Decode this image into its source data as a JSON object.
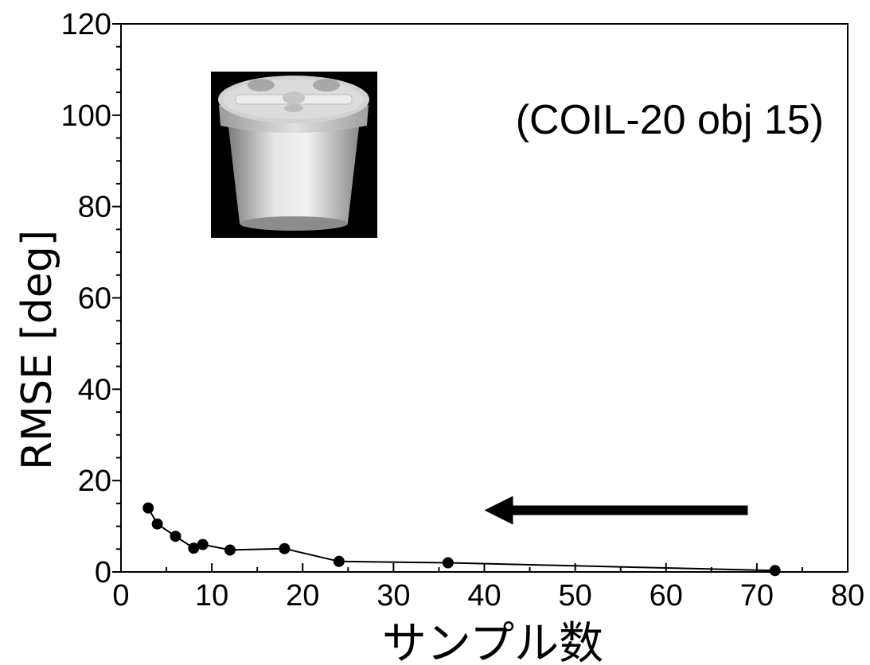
{
  "chart_data": {
    "type": "line",
    "x": [
      3,
      4,
      6,
      8,
      9,
      12,
      18,
      24,
      36,
      72
    ],
    "series": [
      {
        "values": [
          14.0,
          10.5,
          7.8,
          5.2,
          6.0,
          4.8,
          5.1,
          2.3,
          2.0,
          0.3
        ]
      }
    ],
    "title": "",
    "xlabel": "サンプル数",
    "ylabel": "RMSE [deg]",
    "xlim": [
      0,
      80
    ],
    "ylim": [
      0,
      120
    ],
    "xticks": [
      "0",
      "10",
      "20",
      "30",
      "40",
      "50",
      "60",
      "70",
      "80"
    ],
    "yticks": [
      "0",
      "20",
      "40",
      "60",
      "80",
      "100",
      "120"
    ],
    "xtick_values": [
      0,
      10,
      20,
      30,
      40,
      50,
      60,
      70,
      80
    ],
    "ytick_values": [
      0,
      20,
      40,
      60,
      80,
      100,
      120
    ],
    "grid": false,
    "annotation": "(COIL-20 obj 15)",
    "arrow": {
      "from_x": 69,
      "to_x": 40,
      "y": 13.5,
      "direction": "left"
    },
    "inset_image": "white-cup-with-lid-photo",
    "colors": {
      "line": "#000000",
      "marker": "#000000",
      "inset_background": "#000000"
    }
  }
}
